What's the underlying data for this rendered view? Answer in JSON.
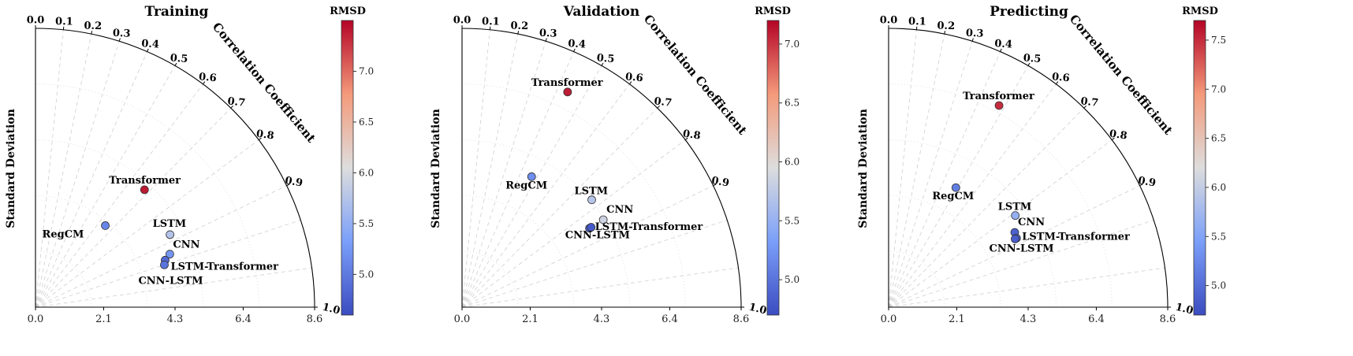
{
  "figure": {
    "colorbar_title": "RMSD"
  },
  "chart_data": [
    {
      "type": "taylor",
      "title": "Training",
      "ylabel": "Standard Deviation",
      "corr_label": "Correlation Coefficient",
      "xlim": [
        0,
        8.6
      ],
      "xticks": [
        "0.0",
        "2.1",
        "4.3",
        "6.4",
        "8.6"
      ],
      "corr_ticks": [
        "0.0",
        "0.1",
        "0.2",
        "0.3",
        "0.4",
        "0.5",
        "0.6",
        "0.7",
        "0.8",
        "0.9",
        "1.0"
      ],
      "colorbar": {
        "title": "RMSD",
        "range": [
          4.6,
          7.5
        ],
        "ticks": [
          "5.0",
          "5.5",
          "6.0",
          "6.5",
          "7.0"
        ]
      },
      "points": [
        {
          "name": "Transformer",
          "std": 4.94,
          "corr": 0.68,
          "rmsd": 7.4
        },
        {
          "name": "RegCM",
          "std": 3.31,
          "corr": 0.65,
          "rmsd": 5.1
        },
        {
          "name": "LSTM",
          "std": 4.71,
          "corr": 0.88,
          "rmsd": 5.75
        },
        {
          "name": "CNN",
          "std": 4.45,
          "corr": 0.93,
          "rmsd": 5.25
        },
        {
          "name": "LSTM-Transformer",
          "std": 4.25,
          "corr": 0.94,
          "rmsd": 4.85
        },
        {
          "name": "CNN-LSTM",
          "std": 4.18,
          "corr": 0.95,
          "rmsd": 4.95
        }
      ]
    },
    {
      "type": "taylor",
      "title": "Validation",
      "ylabel": "Standard Deviation",
      "corr_label": "Correlation Coefficient",
      "xlim": [
        0,
        8.6
      ],
      "xticks": [
        "0.0",
        "2.1",
        "4.3",
        "6.4",
        "8.6"
      ],
      "corr_ticks": [
        "0.0",
        "0.1",
        "0.2",
        "0.3",
        "0.4",
        "0.5",
        "0.6",
        "0.7",
        "0.8",
        "0.9",
        "1.0"
      ],
      "colorbar": {
        "title": "RMSD",
        "range": [
          4.7,
          7.2
        ],
        "ticks": [
          "5.0",
          "5.5",
          "6.0",
          "6.5",
          "7.0"
        ]
      },
      "points": [
        {
          "name": "Transformer",
          "std": 7.39,
          "corr": 0.44,
          "rmsd": 7.1
        },
        {
          "name": "RegCM",
          "std": 4.56,
          "corr": 0.47,
          "rmsd": 5.2
        },
        {
          "name": "LSTM",
          "std": 5.19,
          "corr": 0.77,
          "rmsd": 5.7
        },
        {
          "name": "CNN",
          "std": 5.12,
          "corr": 0.85,
          "rmsd": 5.85
        },
        {
          "name": "LSTM-Transformer",
          "std": 4.62,
          "corr": 0.85,
          "rmsd": 4.85
        },
        {
          "name": "CNN-LSTM",
          "std": 4.68,
          "corr": 0.85,
          "rmsd": 4.8
        }
      ]
    },
    {
      "type": "taylor",
      "title": "Predicting",
      "ylabel": "Standard Deviation",
      "corr_label": "Correlation Coefficient",
      "xlim": [
        0,
        8.6
      ],
      "xticks": [
        "0.0",
        "2.1",
        "4.3",
        "6.4",
        "8.6"
      ],
      "corr_ticks": [
        "0.0",
        "0.1",
        "0.2",
        "0.3",
        "0.4",
        "0.5",
        "0.6",
        "0.7",
        "0.8",
        "0.9",
        "1.0"
      ],
      "colorbar": {
        "title": "RMSD",
        "range": [
          4.7,
          7.7
        ],
        "ticks": [
          "5.0",
          "5.5",
          "6.0",
          "6.5",
          "7.0",
          "7.5"
        ]
      },
      "points": [
        {
          "name": "Transformer",
          "std": 7.09,
          "corr": 0.48,
          "rmsd": 7.5
        },
        {
          "name": "RegCM",
          "std": 4.23,
          "corr": 0.49,
          "rmsd": 5.15
        },
        {
          "name": "LSTM",
          "std": 4.82,
          "corr": 0.81,
          "rmsd": 5.65
        },
        {
          "name": "CNN",
          "std": 4.52,
          "corr": 0.86,
          "rmsd": 4.9
        },
        {
          "name": "LSTM-Transformer",
          "std": 4.48,
          "corr": 0.88,
          "rmsd": 4.95
        },
        {
          "name": "CNN-LSTM",
          "std": 4.43,
          "corr": 0.88,
          "rmsd": 4.85
        }
      ]
    }
  ]
}
